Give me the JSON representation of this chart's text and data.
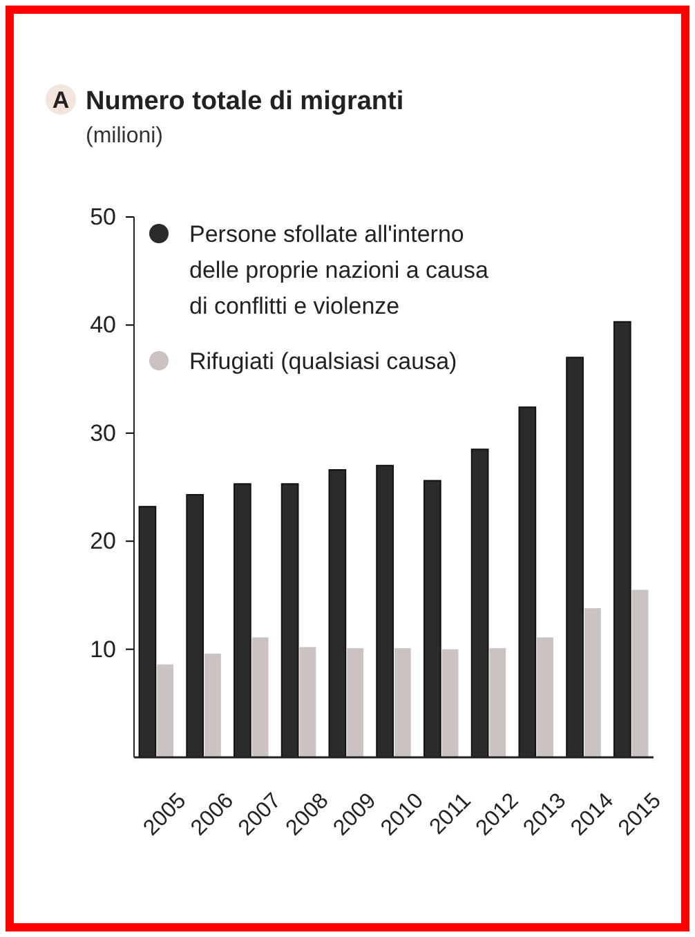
{
  "chart_data": {
    "type": "bar",
    "title": "Numero totale di migranti",
    "subtitle": "(milioni)",
    "annotations": [
      "A"
    ],
    "categories": [
      "2005",
      "2006",
      "2007",
      "2008",
      "2009",
      "2010",
      "2011",
      "2012",
      "2013",
      "2014",
      "2015"
    ],
    "series": [
      {
        "name": "Persone sfollate all'interno delle proprie nazioni a causa di conflitti e violenze",
        "color": "#2b2b2b",
        "values": [
          23.2,
          24.3,
          25.3,
          25.3,
          26.6,
          27.0,
          25.6,
          28.5,
          32.4,
          37.0,
          40.3
        ]
      },
      {
        "name": "Rifugiati (qualsiasi causa)",
        "color": "#cbc2c2",
        "values": [
          8.6,
          9.6,
          11.1,
          10.2,
          10.1,
          10.1,
          10.0,
          10.1,
          11.1,
          13.8,
          15.5
        ]
      }
    ],
    "ylim": [
      0,
      50
    ],
    "yticks": [
      10,
      20,
      30,
      40,
      50
    ],
    "grid": false,
    "legend": "top left"
  }
}
